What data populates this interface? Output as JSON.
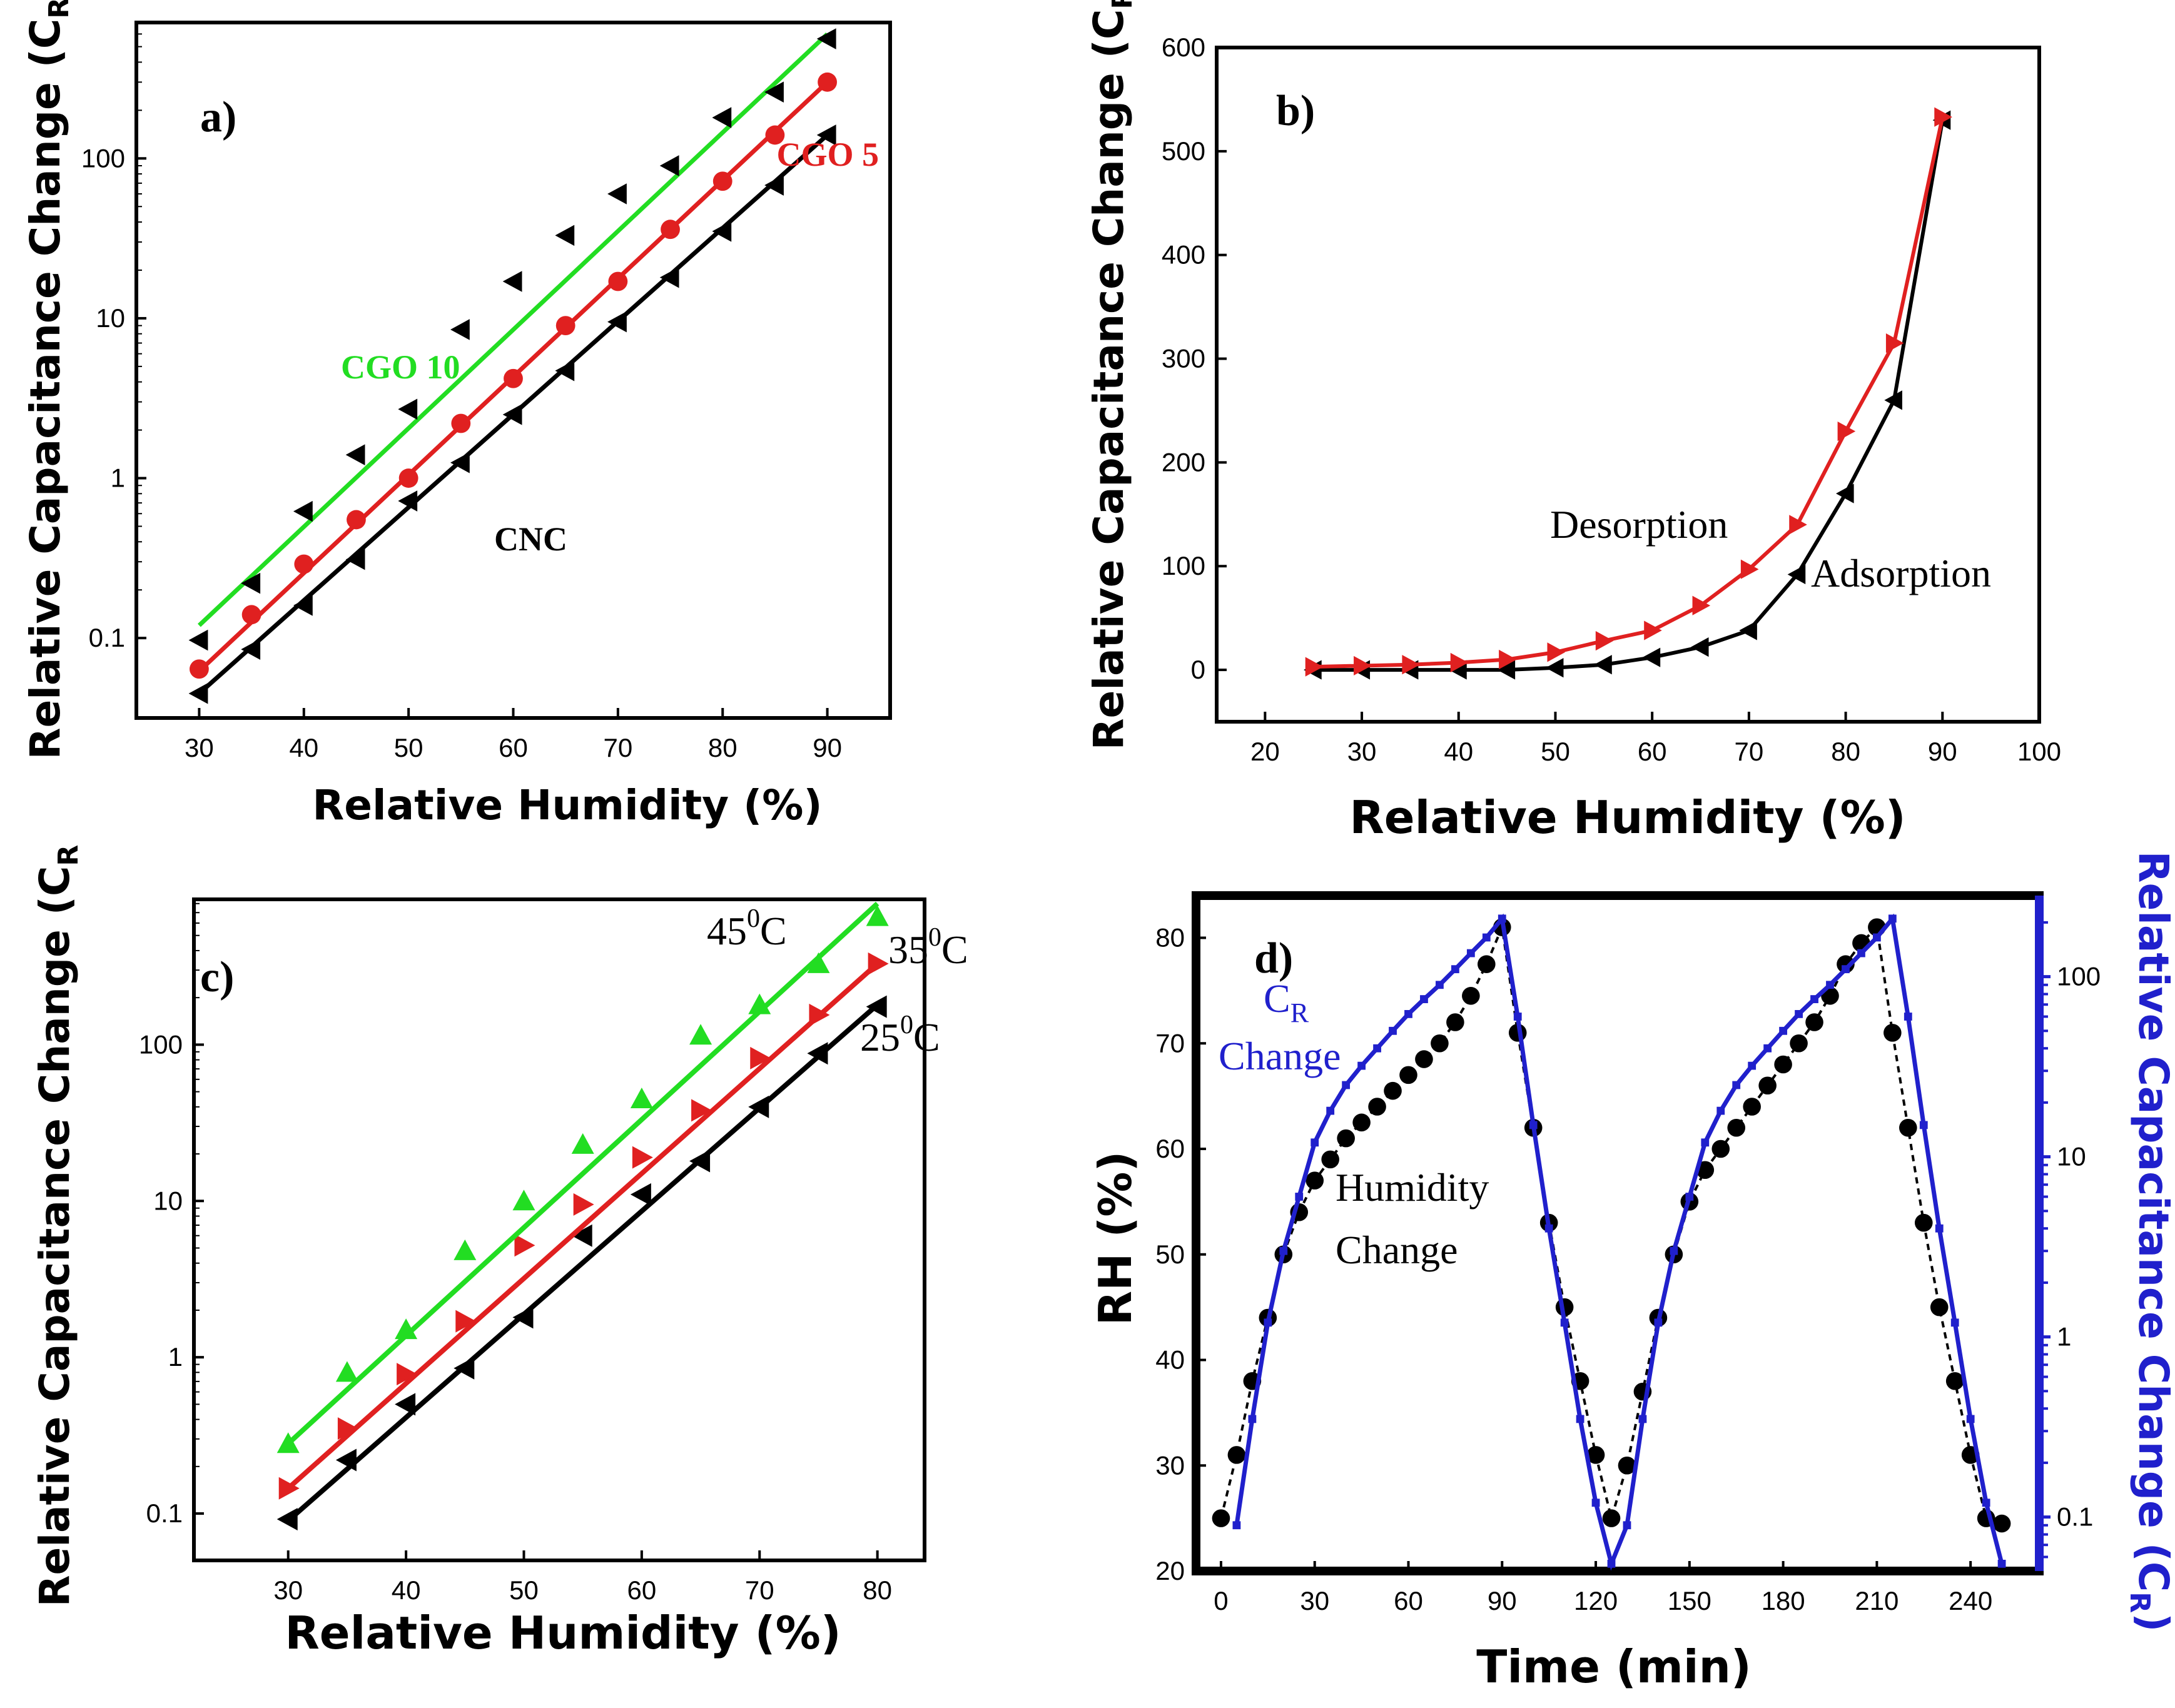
{
  "chart_data": [
    {
      "panel_label": "a)",
      "type": "scatter",
      "xlabel": "Relative Humidity (%)",
      "ylabel": "Relative Capacitance Change (C",
      "ylabel_sub": "R",
      "ylabel_close": ")",
      "xlim": [
        24,
        96
      ],
      "ylim_log10": [
        -1.5,
        2.85
      ],
      "yscale": "log",
      "x_ticks": [
        30,
        40,
        50,
        60,
        70,
        80,
        90
      ],
      "y_ticks": [
        0.1,
        1,
        10,
        100
      ],
      "y_tick_labels": [
        "0.1",
        "1",
        "10",
        "100"
      ],
      "series": [
        {
          "name": "CNC",
          "color": "#000000",
          "marker": "triangle-left",
          "x": [
            30,
            35,
            40,
            45,
            50,
            55,
            60,
            65,
            70,
            75,
            80,
            85,
            90
          ],
          "y": [
            0.045,
            0.085,
            0.16,
            0.31,
            0.72,
            1.25,
            2.5,
            4.7,
            9.5,
            18,
            35,
            68,
            140
          ],
          "fit_endpoints": [
            [
              30,
              0.045
            ],
            [
              90,
              140
            ]
          ]
        },
        {
          "name": "CGO 5",
          "color": "#e02020",
          "marker": "circle",
          "x": [
            30,
            35,
            40,
            45,
            50,
            55,
            60,
            65,
            70,
            75,
            80,
            85,
            90
          ],
          "y": [
            0.064,
            0.14,
            0.29,
            0.55,
            1.0,
            2.2,
            4.2,
            9.0,
            17,
            36,
            72,
            140,
            300
          ],
          "fit_endpoints": [
            [
              30,
              0.062
            ],
            [
              90,
              300
            ]
          ]
        },
        {
          "name": "CGO 10",
          "color": "#22dd22",
          "marker": "triangle-left",
          "marker_color": "#000000",
          "x": [
            30,
            35,
            40,
            45,
            50,
            55,
            60,
            65,
            70,
            75,
            80,
            85,
            90
          ],
          "y": [
            0.097,
            0.22,
            0.62,
            1.4,
            2.7,
            8.5,
            17,
            33,
            60,
            90,
            180,
            260,
            560
          ],
          "fit_endpoints": [
            [
              30,
              0.12
            ],
            [
              90,
              600
            ]
          ]
        }
      ],
      "annotations": [
        {
          "text": "CGO 10",
          "color": "#22dd22"
        },
        {
          "text": "CGO 5",
          "color": "#e02020"
        },
        {
          "text": "CNC",
          "color": "#000000"
        }
      ]
    },
    {
      "panel_label": "b)",
      "type": "line",
      "xlabel": "Relative Humidity (%)",
      "ylabel": "Relative Capacitance Change (C",
      "ylabel_sub": "R",
      "ylabel_close": "",
      "xlim": [
        15,
        100
      ],
      "ylim": [
        -50,
        600
      ],
      "x_ticks": [
        20,
        30,
        40,
        50,
        60,
        70,
        80,
        90,
        100
      ],
      "y_ticks": [
        0,
        100,
        200,
        300,
        400,
        500,
        600
      ],
      "series": [
        {
          "name": "Adsorption",
          "color": "#000000",
          "marker": "triangle-left",
          "x": [
            25,
            30,
            35,
            40,
            45,
            50,
            55,
            60,
            65,
            70,
            75,
            80,
            85,
            90
          ],
          "y": [
            0,
            0,
            0,
            0,
            0,
            2,
            5,
            12,
            22,
            38,
            92,
            170,
            260,
            530
          ]
        },
        {
          "name": "Desorption",
          "color": "#e02020",
          "marker": "triangle-right",
          "x": [
            25,
            30,
            35,
            40,
            45,
            50,
            55,
            60,
            65,
            70,
            75,
            80,
            85,
            90
          ],
          "y": [
            3,
            4,
            5,
            7,
            10,
            17,
            28,
            38,
            62,
            97,
            140,
            230,
            315,
            533
          ]
        }
      ],
      "annotations": [
        {
          "text": "Desorption",
          "color": "#000000"
        },
        {
          "text": "Adsorption",
          "color": "#000000"
        }
      ]
    },
    {
      "panel_label": "c)",
      "type": "scatter",
      "xlabel": "Relative Humidity (%)",
      "ylabel": "Relative Capacitance Change (C",
      "ylabel_sub": "R",
      "ylabel_close": "",
      "xlim": [
        22,
        84
      ],
      "ylim_log10": [
        -1.3,
        2.93
      ],
      "yscale": "log",
      "x_ticks": [
        30,
        40,
        50,
        60,
        70,
        80
      ],
      "y_ticks": [
        0.1,
        1,
        10,
        100
      ],
      "y_tick_labels": [
        "0.1",
        "1",
        "10",
        "100"
      ],
      "series": [
        {
          "name": "25⁰C",
          "color": "#000000",
          "marker": "triangle-left",
          "x": [
            30,
            35,
            40,
            45,
            50,
            55,
            60,
            65,
            70,
            75,
            80
          ],
          "y": [
            0.092,
            0.22,
            0.5,
            0.85,
            1.8,
            6,
            11,
            18,
            40,
            88,
            175
          ],
          "fit_endpoints": [
            [
              30,
              0.09
            ],
            [
              80,
              180
            ]
          ]
        },
        {
          "name": "35⁰C",
          "color": "#e02020",
          "marker": "triangle-right",
          "x": [
            30,
            35,
            40,
            45,
            50,
            55,
            60,
            65,
            70,
            75,
            80
          ],
          "y": [
            0.145,
            0.35,
            0.78,
            1.7,
            5.2,
            9.5,
            19,
            38,
            82,
            155,
            330
          ],
          "fit_endpoints": [
            [
              30,
              0.145
            ],
            [
              80,
              330
            ]
          ]
        },
        {
          "name": "45⁰C",
          "color": "#22dd22",
          "marker": "triangle-up",
          "x": [
            30,
            35,
            40,
            45,
            50,
            55,
            60,
            65,
            70,
            75,
            80
          ],
          "y": [
            0.28,
            0.8,
            1.5,
            4.8,
            10,
            23,
            45,
            115,
            180,
            330,
            660
          ],
          "fit_endpoints": [
            [
              30,
              0.28
            ],
            [
              80,
              800
            ]
          ]
        }
      ],
      "annotations": [
        {
          "text": "45",
          "sup": "0",
          "unit": "C"
        },
        {
          "text": "35",
          "sup": "0",
          "unit": "C"
        },
        {
          "text": "25",
          "sup": "0",
          "unit": "C"
        }
      ]
    },
    {
      "panel_label": "d)",
      "type": "line",
      "xlabel": "Time (min)",
      "ylabel": "RH (%)",
      "ylabel_right": "Relative Capacitance Change (C",
      "ylabel_right_sub": "R",
      "ylabel_right_close": ")",
      "xlim": [
        -8,
        262
      ],
      "ylim": [
        20,
        84
      ],
      "ylim_right_log10": [
        -1.3,
        2.45
      ],
      "x_ticks": [
        0,
        30,
        60,
        90,
        120,
        150,
        180,
        210,
        240
      ],
      "y_ticks": [
        20,
        30,
        40,
        50,
        60,
        70,
        80
      ],
      "y_ticks_right": [
        0.1,
        1,
        10,
        100
      ],
      "y_tick_labels_right": [
        "0.1",
        "1",
        "10",
        "100"
      ],
      "series": [
        {
          "name": "Humidity Change",
          "color": "#000000",
          "marker": "circle",
          "axis": "left",
          "x": [
            0,
            5,
            10,
            15,
            20,
            25,
            30,
            35,
            40,
            45,
            50,
            55,
            60,
            65,
            70,
            75,
            80,
            85,
            90,
            95,
            100,
            105,
            110,
            115,
            120,
            125,
            130,
            135,
            140,
            145,
            150,
            155,
            160,
            165,
            170,
            175,
            180,
            185,
            190,
            195,
            200,
            205,
            210,
            215,
            220,
            225,
            230,
            235,
            240,
            245,
            250
          ],
          "y": [
            25,
            31,
            38,
            44,
            50,
            54,
            57,
            59,
            61,
            62.5,
            64,
            65.5,
            67,
            68.5,
            70,
            72,
            74.5,
            77.5,
            81,
            71,
            62,
            53,
            45,
            38,
            31,
            25,
            30,
            37,
            44,
            50,
            55,
            58,
            60,
            62,
            64,
            66,
            68,
            70,
            72,
            74.5,
            77.5,
            79.5,
            81,
            71,
            62,
            53,
            45,
            38,
            31,
            25,
            24.5
          ]
        },
        {
          "name": "C_R Change",
          "color": "#2020cc",
          "marker": "square",
          "axis": "right",
          "x": [
            5,
            10,
            15,
            20,
            25,
            30,
            35,
            40,
            45,
            50,
            55,
            60,
            65,
            70,
            75,
            80,
            85,
            90,
            95,
            100,
            105,
            110,
            115,
            120,
            125,
            130,
            135,
            140,
            145,
            150,
            155,
            160,
            165,
            170,
            175,
            180,
            185,
            190,
            195,
            200,
            205,
            210,
            215,
            220,
            225,
            230,
            235,
            240,
            245,
            250
          ],
          "y": [
            0.09,
            0.35,
            1.2,
            3.0,
            6.0,
            12,
            18,
            25,
            32,
            40,
            50,
            62,
            75,
            90,
            110,
            135,
            165,
            210,
            60,
            15,
            4.0,
            1.2,
            0.35,
            0.12,
            0.055,
            0.09,
            0.35,
            1.2,
            3.0,
            6.0,
            12,
            18,
            25,
            32,
            40,
            50,
            62,
            75,
            90,
            110,
            135,
            165,
            210,
            60,
            15,
            4.0,
            1.2,
            0.35,
            0.12,
            0.055
          ]
        }
      ],
      "annotations": [
        {
          "text": "C",
          "sub": "R",
          "line2": "Change",
          "color": "#2020cc"
        },
        {
          "text": "Humidity",
          "line2": "Change",
          "color": "#000000"
        }
      ]
    }
  ]
}
